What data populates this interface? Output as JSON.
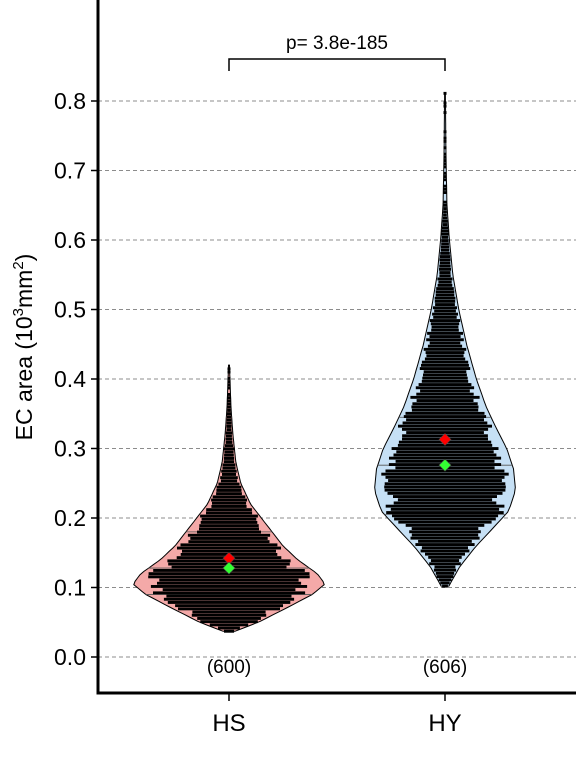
{
  "chart_data": {
    "type": "violin-beeswarm",
    "ylabel_base": "EC area (10",
    "ylabel_exp1": "3",
    "ylabel_mid": "mm",
    "ylabel_exp2": "2",
    "ylabel_end": ")",
    "ylim": [
      -0.05,
      0.95
    ],
    "yticks": [
      0.0,
      0.1,
      0.2,
      0.3,
      0.4,
      0.5,
      0.6,
      0.7,
      0.8
    ],
    "ytick_labels": [
      "0.0",
      "0.1",
      "0.2",
      "0.3",
      "0.4",
      "0.5",
      "0.6",
      "0.7",
      "0.8"
    ],
    "grid": "horizontal-dashed",
    "categories": [
      "HS",
      "HY"
    ],
    "groups": [
      {
        "label": "HS",
        "n_label": "(600)",
        "fill": "#f4a9a8",
        "mean": 0.142,
        "median": 0.128,
        "min": 0.037,
        "max": 0.42,
        "density": [
          [
            0.037,
            0.06
          ],
          [
            0.05,
            0.3
          ],
          [
            0.07,
            0.58
          ],
          [
            0.09,
            0.85
          ],
          [
            0.105,
            0.98
          ],
          [
            0.12,
            0.9
          ],
          [
            0.14,
            0.7
          ],
          [
            0.16,
            0.55
          ],
          [
            0.18,
            0.44
          ],
          [
            0.2,
            0.33
          ],
          [
            0.22,
            0.22
          ],
          [
            0.25,
            0.12
          ],
          [
            0.28,
            0.07
          ],
          [
            0.32,
            0.04
          ],
          [
            0.36,
            0.02
          ],
          [
            0.42,
            0.005
          ]
        ],
        "quantile_lines": [
          0.09,
          0.128,
          0.18
        ]
      },
      {
        "label": "HY",
        "n_label": "(606)",
        "fill": "#c6e0f5",
        "mean": 0.313,
        "median": 0.276,
        "min": 0.102,
        "max": 0.812,
        "density": [
          [
            0.102,
            0.04
          ],
          [
            0.13,
            0.15
          ],
          [
            0.16,
            0.32
          ],
          [
            0.19,
            0.52
          ],
          [
            0.21,
            0.65
          ],
          [
            0.24,
            0.72
          ],
          [
            0.27,
            0.7
          ],
          [
            0.3,
            0.63
          ],
          [
            0.33,
            0.52
          ],
          [
            0.36,
            0.42
          ],
          [
            0.4,
            0.32
          ],
          [
            0.45,
            0.22
          ],
          [
            0.5,
            0.14
          ],
          [
            0.55,
            0.08
          ],
          [
            0.6,
            0.045
          ],
          [
            0.65,
            0.02
          ],
          [
            0.72,
            0.01
          ],
          [
            0.81,
            0.004
          ]
        ],
        "quantile_lines": [
          0.205,
          0.276,
          0.345
        ]
      }
    ],
    "annotation": {
      "text": "p= 3.8e-185"
    },
    "markers": {
      "mean_color": "#ff0000",
      "median_color": "#33ff33"
    }
  }
}
